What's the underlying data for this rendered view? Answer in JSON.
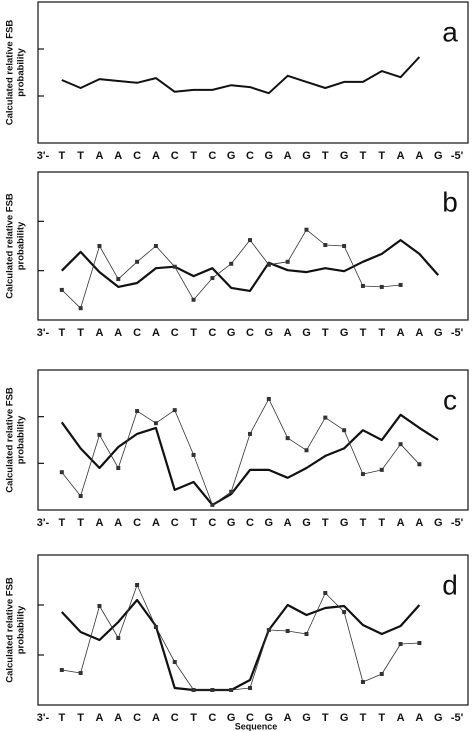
{
  "chart_data": [
    {
      "type": "line",
      "panel_label": "a",
      "y_label": [
        "Calculated relative FSB",
        "probability"
      ],
      "categories": [
        "3'-",
        "T",
        "T",
        "A",
        "A",
        "C",
        "A",
        "C",
        "T",
        "C",
        "G",
        "C",
        "G",
        "A",
        "G",
        "T",
        "G",
        "T",
        "T",
        "A",
        "A",
        "G",
        "-5'"
      ],
      "ylim": [
        0,
        3
      ],
      "yticks": [
        1,
        2
      ],
      "series": [
        {
          "color": "#111111",
          "line_width": 2,
          "marker": "none",
          "values": [
            null,
            1.34,
            1.17,
            1.36,
            1.32,
            1.28,
            1.38,
            1.09,
            1.13,
            1.13,
            1.23,
            1.19,
            1.06,
            1.43,
            1.3,
            1.17,
            1.3,
            1.3,
            1.53,
            1.4,
            1.83,
            null,
            null
          ]
        }
      ]
    },
    {
      "type": "line",
      "panel_label": "b",
      "y_label": [
        "Calculated relative FSB",
        "probability"
      ],
      "categories": [
        "3'-",
        "T",
        "T",
        "A",
        "A",
        "C",
        "A",
        "C",
        "T",
        "C",
        "G",
        "C",
        "G",
        "A",
        "G",
        "T",
        "G",
        "T",
        "T",
        "A",
        "A",
        "G",
        "-5'"
      ],
      "ylim": [
        0,
        3
      ],
      "yticks": [
        1,
        2
      ],
      "series": [
        {
          "color": "#111111",
          "line_width": 2.2,
          "marker": "none",
          "values": [
            null,
            1.0,
            1.38,
            0.97,
            0.67,
            0.75,
            1.05,
            1.08,
            0.89,
            1.05,
            0.65,
            0.59,
            1.16,
            1.01,
            0.97,
            1.05,
            0.99,
            1.18,
            1.34,
            1.62,
            1.34,
            0.91,
            null
          ]
        },
        {
          "color": "#333333",
          "line_width": 0.8,
          "marker": "square",
          "values": [
            null,
            0.61,
            0.24,
            1.5,
            0.83,
            1.18,
            1.5,
            1.08,
            0.41,
            0.85,
            1.14,
            1.62,
            1.12,
            1.18,
            1.83,
            1.52,
            1.5,
            0.69,
            0.67,
            0.71,
            null,
            null,
            null
          ]
        }
      ]
    },
    {
      "type": "line",
      "panel_label": "c",
      "y_label": [
        "Calculated relative FSB",
        "probability"
      ],
      "categories": [
        "3'-",
        "T",
        "T",
        "A",
        "A",
        "C",
        "A",
        "C",
        "T",
        "C",
        "G",
        "C",
        "G",
        "A",
        "G",
        "T",
        "G",
        "T",
        "T",
        "A",
        "A",
        "G",
        "-5'"
      ],
      "ylim": [
        0,
        3
      ],
      "yticks": [
        1,
        2
      ],
      "series": [
        {
          "color": "#111111",
          "line_width": 2.2,
          "marker": "none",
          "values": [
            null,
            1.88,
            1.32,
            0.9,
            1.35,
            1.63,
            1.76,
            0.43,
            0.6,
            0.11,
            0.34,
            0.86,
            0.86,
            0.69,
            0.9,
            1.16,
            1.32,
            1.71,
            1.5,
            2.04,
            1.76,
            1.5,
            null
          ]
        },
        {
          "color": "#333333",
          "line_width": 0.8,
          "marker": "square",
          "values": [
            null,
            0.81,
            0.3,
            1.61,
            0.9,
            2.12,
            1.86,
            2.14,
            1.18,
            0.11,
            0.39,
            1.63,
            2.38,
            1.54,
            1.28,
            1.98,
            1.71,
            0.77,
            0.86,
            1.41,
            0.98,
            null,
            null
          ]
        }
      ]
    },
    {
      "type": "line",
      "panel_label": "d",
      "y_label": [
        "Calculated relative FSB",
        "probability"
      ],
      "x_label": "Sequence",
      "categories": [
        "3'-",
        "T",
        "T",
        "A",
        "A",
        "C",
        "A",
        "C",
        "T",
        "C",
        "G",
        "C",
        "G",
        "A",
        "G",
        "T",
        "G",
        "T",
        "T",
        "A",
        "A",
        "G",
        "-5'"
      ],
      "ylim": [
        0,
        3
      ],
      "yticks": [
        1,
        2
      ],
      "series": [
        {
          "color": "#111111",
          "line_width": 2.2,
          "marker": "none",
          "values": [
            null,
            1.86,
            1.46,
            1.3,
            1.66,
            2.1,
            1.58,
            0.34,
            0.3,
            0.3,
            0.3,
            0.5,
            1.5,
            2.0,
            1.8,
            1.94,
            1.98,
            1.6,
            1.42,
            1.58,
            2.0,
            null,
            null
          ]
        },
        {
          "color": "#333333",
          "line_width": 0.8,
          "marker": "square",
          "values": [
            null,
            0.7,
            0.64,
            1.98,
            1.34,
            2.4,
            1.56,
            0.86,
            0.3,
            0.3,
            0.3,
            0.34,
            1.5,
            1.48,
            1.42,
            2.24,
            1.86,
            0.46,
            0.62,
            1.22,
            1.24,
            null,
            null
          ]
        }
      ]
    }
  ]
}
